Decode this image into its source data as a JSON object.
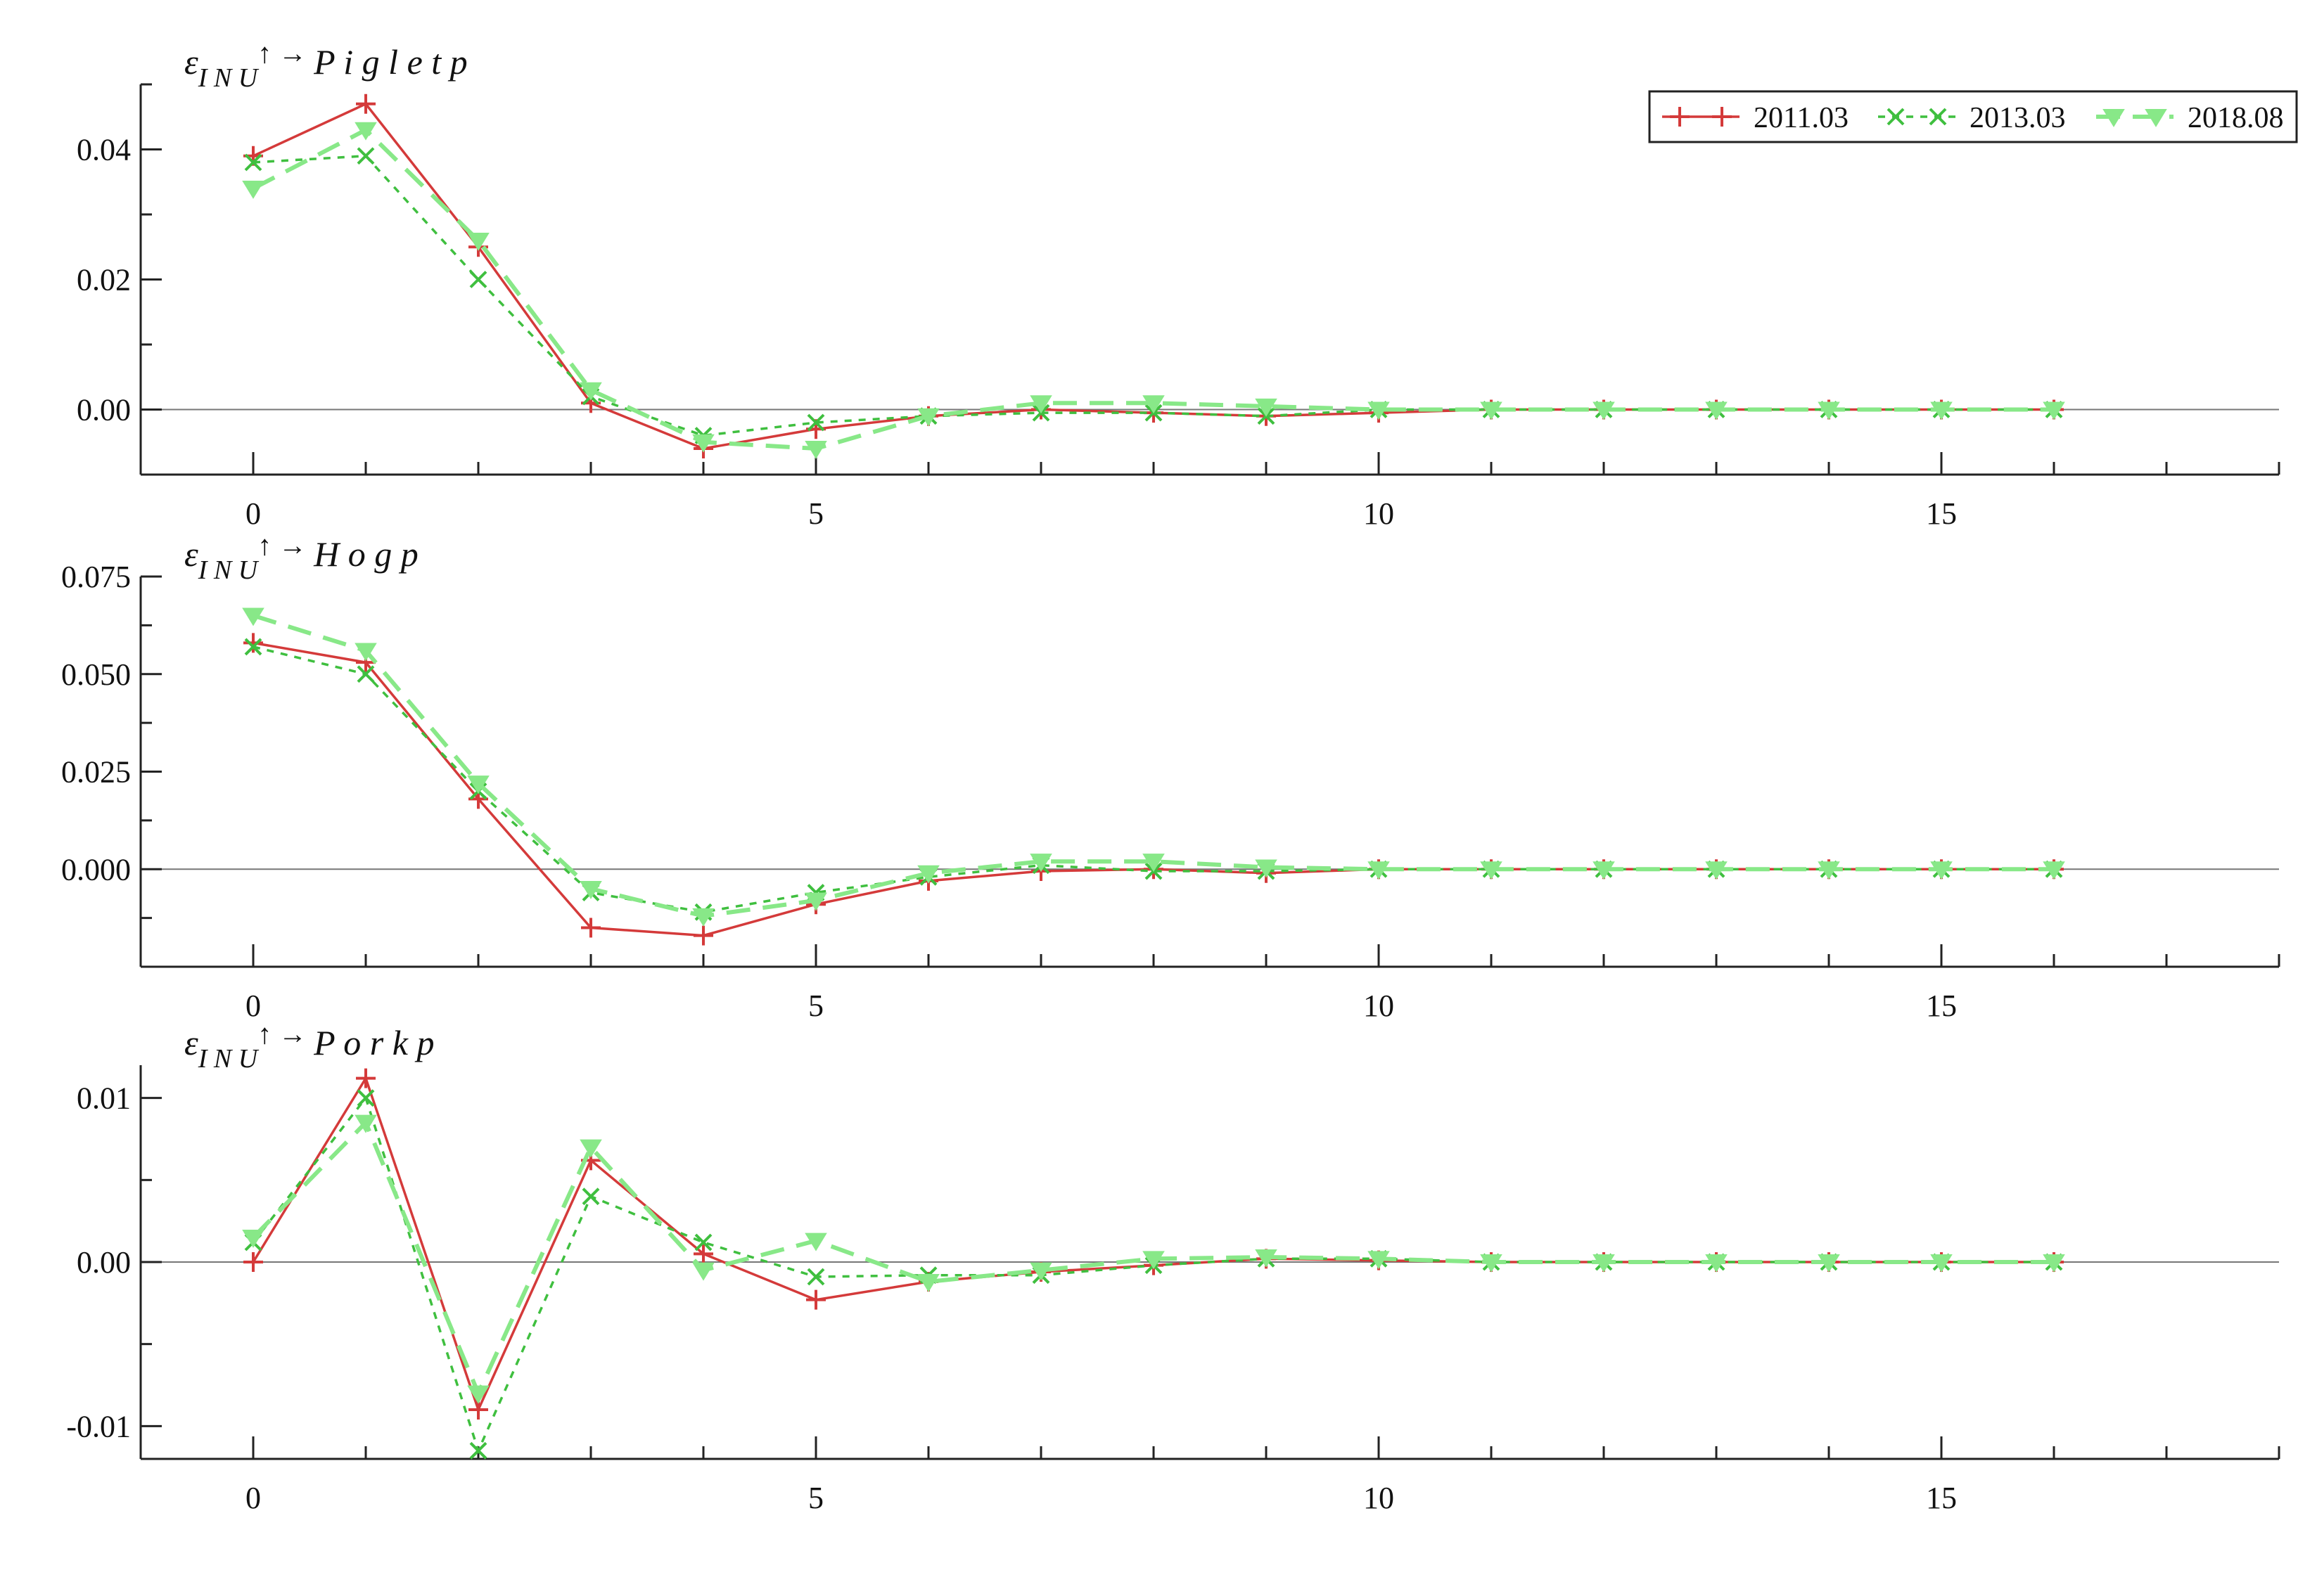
{
  "chart_data": {
    "type": "line",
    "x": [
      0,
      1,
      2,
      3,
      4,
      5,
      6,
      7,
      8,
      9,
      10,
      11,
      12,
      13,
      14,
      15,
      16
    ],
    "xlim": [
      -1,
      18
    ],
    "xticks_labeled": [
      0,
      5,
      10,
      15
    ],
    "grid": false,
    "zero_line": true,
    "legend": {
      "placement": "top-right",
      "entries": [
        "2011.03",
        "2013.03",
        "2018.08"
      ]
    },
    "series_styles": [
      {
        "color": "#d43a3a",
        "dash": "solid",
        "marker": "plus"
      },
      {
        "color": "#3fbf3f",
        "dash": "dotted",
        "marker": "x"
      },
      {
        "color": "#88e888",
        "dash": "dashed",
        "marker": "triangle-down"
      }
    ],
    "panels": [
      {
        "title": {
          "eps": "ε",
          "sub": "I N U",
          "arrow": "↑ →",
          "var": "P i g l e t p"
        },
        "ylim": [
          -0.01,
          0.05
        ],
        "yticks": [
          0.0,
          0.02,
          0.04
        ],
        "ytick_labels": [
          "0.00",
          "0.02",
          "0.04"
        ],
        "series": [
          {
            "values": [
              0.039,
              0.047,
              0.025,
              0.001,
              -0.006,
              -0.003,
              -0.001,
              0.0,
              -0.0005,
              -0.001,
              -0.0005,
              0.0,
              0.0,
              0.0,
              0.0,
              0.0,
              0.0
            ]
          },
          {
            "values": [
              0.038,
              0.039,
              0.02,
              0.002,
              -0.004,
              -0.002,
              -0.001,
              -0.0005,
              -0.0005,
              -0.001,
              0.0,
              0.0,
              0.0,
              0.0,
              0.0,
              0.0,
              0.0
            ]
          },
          {
            "values": [
              0.034,
              0.043,
              0.026,
              0.003,
              -0.005,
              -0.006,
              -0.001,
              0.001,
              0.001,
              0.0005,
              0.0,
              0.0,
              0.0,
              0.0,
              0.0,
              0.0,
              0.0
            ]
          }
        ]
      },
      {
        "title": {
          "eps": "ε",
          "sub": "I N U",
          "arrow": "↑ →",
          "var": "H o g p"
        },
        "ylim": [
          -0.025,
          0.075
        ],
        "yticks": [
          0.0,
          0.025,
          0.05,
          0.075
        ],
        "ytick_labels": [
          "0.000",
          "0.025",
          "0.050",
          "0.075"
        ],
        "series": [
          {
            "values": [
              0.058,
              0.053,
              0.018,
              -0.015,
              -0.017,
              -0.009,
              -0.003,
              -0.0005,
              0.0,
              -0.001,
              0.0,
              0.0,
              0.0,
              0.0,
              0.0,
              0.0,
              0.0
            ]
          },
          {
            "values": [
              0.057,
              0.05,
              0.02,
              -0.006,
              -0.011,
              -0.006,
              -0.002,
              0.001,
              -0.0005,
              -0.0005,
              0.0,
              0.0,
              0.0,
              0.0,
              0.0,
              0.0,
              0.0
            ]
          },
          {
            "values": [
              0.065,
              0.056,
              0.022,
              -0.005,
              -0.012,
              -0.008,
              -0.001,
              0.002,
              0.002,
              0.0005,
              0.0,
              0.0,
              0.0,
              0.0,
              0.0,
              0.0,
              0.0
            ]
          }
        ]
      },
      {
        "title": {
          "eps": "ε",
          "sub": "I N U",
          "arrow": "↑ →",
          "var": "P o r k p"
        },
        "ylim": [
          -0.012,
          0.012
        ],
        "yticks": [
          -0.01,
          0.0,
          0.01
        ],
        "ytick_labels": [
          "-0.01",
          "0.00",
          "0.01"
        ],
        "series": [
          {
            "values": [
              0.0,
              0.0112,
              -0.009,
              0.0062,
              0.0005,
              -0.0023,
              -0.0012,
              -0.0006,
              -0.0002,
              0.0002,
              0.0001,
              0.0,
              0.0,
              0.0,
              0.0,
              0.0,
              0.0
            ]
          },
          {
            "values": [
              0.0012,
              0.01,
              -0.0115,
              0.004,
              0.0012,
              -0.0009,
              -0.0008,
              -0.0008,
              -0.0002,
              0.0002,
              0.0002,
              0.0,
              0.0,
              0.0,
              0.0,
              0.0,
              0.0
            ]
          },
          {
            "values": [
              0.0015,
              0.0085,
              -0.008,
              0.007,
              -0.0005,
              0.0013,
              -0.0012,
              -0.0005,
              0.0002,
              0.0003,
              0.0002,
              0.0,
              0.0,
              0.0,
              0.0,
              0.0,
              0.0
            ]
          }
        ]
      }
    ]
  }
}
